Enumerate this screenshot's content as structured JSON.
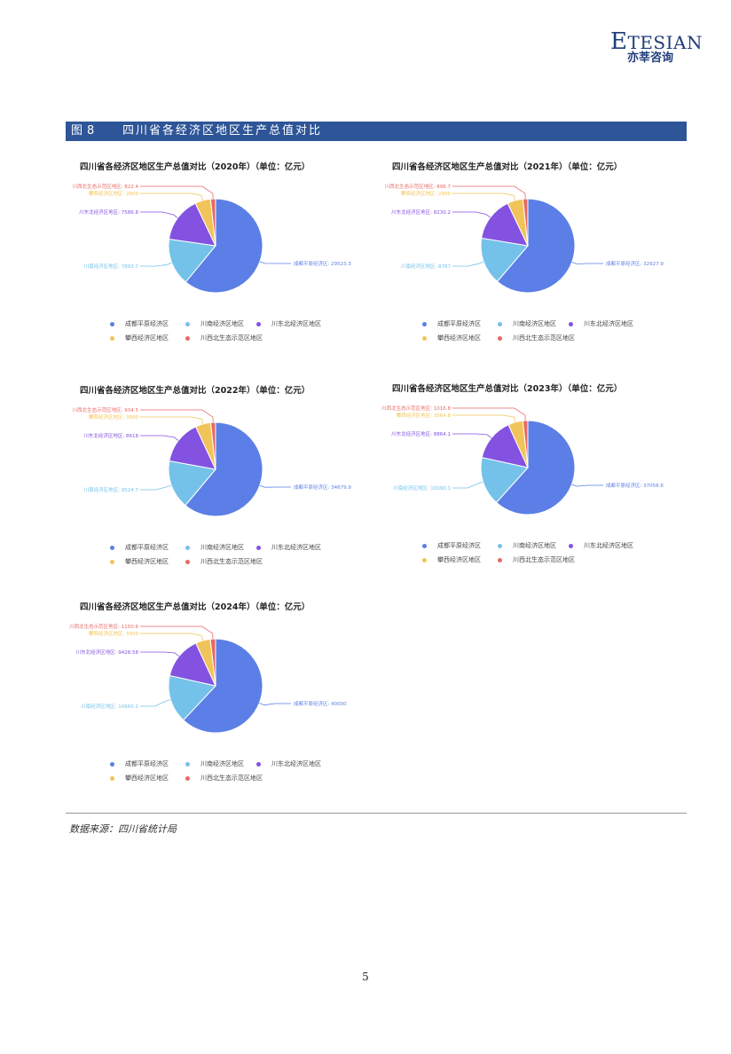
{
  "logo": {
    "brand_first": "E",
    "brand_rest": "TESIAN",
    "cn": "亦莘咨询"
  },
  "figure": {
    "label": "图",
    "number": "8",
    "title": "四川省各经济区地区生产总值对比"
  },
  "colors": [
    "#5b7fe6",
    "#74c2ea",
    "#8352e0",
    "#f1c45a",
    "#e46a65"
  ],
  "chart_data": [
    {
      "type": "pie",
      "title": "四川省各经济区地区生产总值对比（2020年）（单位：亿元）",
      "categories": [
        "成都平原经济区",
        "川南经济区地区",
        "川东北经济区地区",
        "攀西经济区地区",
        "川西北生态示范区地区"
      ],
      "values": [
        29523.3,
        7893.7,
        7586.8,
        2600,
        822.4
      ],
      "labels": [
        "成都平原经济区: 29523.3",
        "川南经济区地区: 7893.7",
        "川东北经济区地区: 7586.8",
        "攀西经济区地区: 2600",
        "川西北生态示范区地区: 822.4"
      ]
    },
    {
      "type": "pie",
      "title": "四川省各经济区地区生产总值对比（2021年）（单位：亿元）",
      "categories": [
        "成都平原经济区",
        "川南经济区地区",
        "川东北经济区地区",
        "攀西经济区地区",
        "川西北生态示范区地区"
      ],
      "values": [
        32927.9,
        8787,
        8230.2,
        2900,
        896.7
      ],
      "labels": [
        "成都平原经济区: 32927.9",
        "川南经济区地区: 8787",
        "川东北经济区地区: 8230.2",
        "攀西经济区地区: 2900",
        "川西北生态示范区地区: 896.7"
      ]
    },
    {
      "type": "pie",
      "title": "四川省各经济区地区生产总值对比（2022年）（单位：亿元）",
      "categories": [
        "成都平原经济区",
        "川南经济区地区",
        "川东北经济区地区",
        "攀西经济区地区",
        "川西北生态示范区地区"
      ],
      "values": [
        34679.9,
        9524.7,
        8618,
        3000,
        934.5
      ],
      "labels": [
        "成都平原经济区: 34679.9",
        "川南经济区地区: 9524.7",
        "川东北经济区地区: 8618",
        "攀西经济区地区: 3000",
        "川西北生态示范区地区: 934.5"
      ]
    },
    {
      "type": "pie",
      "title": "四川省各经济区地区生产总值对比（2023年）（单位：亿元）",
      "categories": [
        "成都平原经济区",
        "川南经济区地区",
        "川东北经济区地区",
        "攀西经济区地区",
        "川西北生态示范区地区"
      ],
      "values": [
        37058.6,
        10090.1,
        8864.1,
        3064.8,
        1016.8
      ],
      "labels": [
        "成都平原经济区: 37058.6",
        "川南经济区地区: 10090.1",
        "川东北经济区地区: 8864.1",
        "攀西经济区地区: 3064.8",
        "川西北生态示范区地区: 1016.8"
      ]
    },
    {
      "type": "pie",
      "title": "四川省各经济区地区生产总值对比（2024年）（单位：亿元）",
      "categories": [
        "成都平原经济区",
        "川南经济区地区",
        "川东北经济区地区",
        "攀西经济区地区",
        "川西北生态示范区地区"
      ],
      "values": [
        40000,
        10660.1,
        9428.58,
        3300,
        1150.6
      ],
      "labels": [
        "成都平原经济区: 40000",
        "川南经济区地区: 10660.1",
        "川东北经济区地区: 9428.58",
        "攀西经济区地区: 3300",
        "川西北生态示范区地区: 1150.6"
      ]
    }
  ],
  "source": "数据来源：四川省统计局",
  "page_number": "5"
}
